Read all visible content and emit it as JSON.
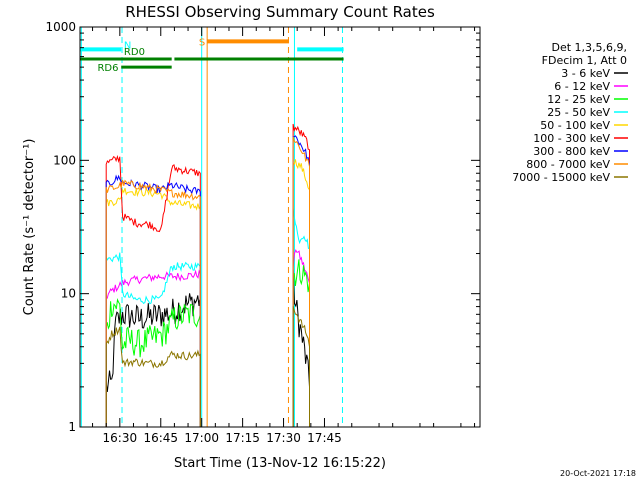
{
  "chart_data": {
    "type": "line",
    "title": "RHESSI Observing Summary Count Rates",
    "xlabel": "Start Time (13-Nov-12 16:15:22)",
    "ylabel": "Count Rate (s⁻¹ detector⁻¹)",
    "y_scale": "log",
    "ylim": [
      1,
      1000
    ],
    "xlim_minutes": [
      975.4,
      1122.0
    ],
    "y_ticks": [
      {
        "v": 1,
        "label": "1"
      },
      {
        "v": 10,
        "label": "10"
      },
      {
        "v": 100,
        "label": "100"
      },
      {
        "v": 1000,
        "label": "1000"
      }
    ],
    "x_ticks": [
      {
        "m": 990,
        "label": "16:30"
      },
      {
        "m": 1005,
        "label": "16:45"
      },
      {
        "m": 1020,
        "label": "17:00"
      },
      {
        "m": 1035,
        "label": "17:15"
      },
      {
        "m": 1050,
        "label": "17:30"
      },
      {
        "m": 1065,
        "label": "17:45"
      }
    ],
    "legend": {
      "placement": "right",
      "header": [
        "Det 1,3,5,6,9,",
        "FDecim 1, Att 0"
      ]
    },
    "series": [
      {
        "name": "3 - 6 keV",
        "color": "#000000",
        "segments": [
          [
            [
              985.0,
              2.0
            ],
            [
              987.0,
              2.1
            ],
            [
              988.5,
              6.0
            ],
            [
              991.0,
              7.0
            ],
            [
              997.0,
              6.5
            ],
            [
              1003.0,
              6.8
            ],
            [
              1009.0,
              7.2
            ],
            [
              1012.0,
              8.0
            ],
            [
              1016.0,
              8.5
            ],
            [
              1019.0,
              9.0
            ],
            [
              1019.5,
              9.0
            ]
          ],
          [
            [
              1053.5,
              12.0
            ],
            [
              1054.5,
              8.0
            ],
            [
              1056.5,
              5.0
            ],
            [
              1058.5,
              3.0
            ],
            [
              1059.5,
              2.0
            ]
          ]
        ]
      },
      {
        "name": "6 - 12 keV",
        "color": "#ff00ff",
        "segments": [
          [
            [
              985.0,
              9.5
            ],
            [
              987.0,
              10.5
            ],
            [
              991.0,
              12.0
            ],
            [
              994.0,
              12.5
            ],
            [
              999.0,
              13.0
            ],
            [
              1005.0,
              13.5
            ],
            [
              1009.0,
              13.5
            ],
            [
              1013.0,
              13.5
            ],
            [
              1019.5,
              14.0
            ]
          ],
          [
            [
              1053.5,
              16.0
            ],
            [
              1054.5,
              22.0
            ],
            [
              1056.5,
              18.0
            ],
            [
              1058.5,
              14.0
            ],
            [
              1059.5,
              12.0
            ]
          ]
        ]
      },
      {
        "name": "12 - 25 keV",
        "color": "#00ff00",
        "segments": [
          [
            [
              985.0,
              5.0
            ],
            [
              987.0,
              8.5
            ],
            [
              990.0,
              8.0
            ],
            [
              991.0,
              4.0
            ],
            [
              993.0,
              4.5
            ],
            [
              997.0,
              4.2
            ],
            [
              1001.0,
              4.5
            ],
            [
              1006.0,
              5.0
            ],
            [
              1010.0,
              6.5
            ],
            [
              1015.0,
              7.0
            ],
            [
              1019.5,
              7.0
            ]
          ],
          [
            [
              1053.5,
              14.0
            ],
            [
              1056.5,
              15.0
            ],
            [
              1058.5,
              13.0
            ],
            [
              1059.5,
              12.0
            ]
          ]
        ]
      },
      {
        "name": "25 - 50 keV",
        "color": "#00ffff",
        "segments": [
          [
            [
              985.0,
              18.0
            ],
            [
              990.0,
              19.0
            ],
            [
              991.0,
              10.0
            ],
            [
              996.0,
              9.0
            ],
            [
              1001.0,
              9.0
            ],
            [
              1005.0,
              9.0
            ],
            [
              1009.0,
              16.0
            ],
            [
              1015.0,
              16.0
            ],
            [
              1019.5,
              16.0
            ]
          ],
          [
            [
              1053.5,
              45.0
            ],
            [
              1055.5,
              25.0
            ],
            [
              1057.5,
              28.0
            ],
            [
              1059.5,
              22.0
            ]
          ]
        ]
      },
      {
        "name": "50 - 100 keV",
        "color": "#ffd700",
        "segments": [
          [
            [
              985.0,
              48.0
            ],
            [
              990.0,
              50.0
            ],
            [
              991.0,
              60.0
            ],
            [
              996.0,
              58.0
            ],
            [
              1001.0,
              57.0
            ],
            [
              1005.0,
              56.0
            ],
            [
              1009.0,
              48.0
            ],
            [
              1015.0,
              46.0
            ],
            [
              1019.5,
              45.0
            ]
          ],
          [
            [
              1053.5,
              100.0
            ],
            [
              1056.5,
              90.0
            ],
            [
              1058.5,
              70.0
            ],
            [
              1059.5,
              60.0
            ]
          ]
        ]
      },
      {
        "name": "100 - 300 keV",
        "color": "#ff0000",
        "segments": [
          [
            [
              985.0,
              95.0
            ],
            [
              990.0,
              105.0
            ],
            [
              991.0,
              38.0
            ],
            [
              996.0,
              34.0
            ],
            [
              1001.0,
              33.0
            ],
            [
              1004.0,
              31.0
            ],
            [
              1005.0,
              29.0
            ],
            [
              1009.0,
              88.0
            ],
            [
              1015.0,
              83.0
            ],
            [
              1019.5,
              80.0
            ]
          ],
          [
            [
              1053.5,
              180.0
            ],
            [
              1056.5,
              160.0
            ],
            [
              1058.5,
              140.0
            ],
            [
              1059.5,
              120.0
            ]
          ]
        ]
      },
      {
        "name": "300 - 800 keV",
        "color": "#0000ff",
        "segments": [
          [
            [
              985.0,
              65.0
            ],
            [
              990.0,
              75.0
            ],
            [
              991.0,
              68.0
            ],
            [
              996.0,
              66.0
            ],
            [
              1001.0,
              63.0
            ],
            [
              1005.0,
              60.0
            ],
            [
              1009.0,
              65.0
            ],
            [
              1015.0,
              60.0
            ],
            [
              1019.5,
              58.0
            ]
          ],
          [
            [
              1053.5,
              160.0
            ],
            [
              1056.5,
              130.0
            ],
            [
              1058.5,
              110.0
            ],
            [
              1059.5,
              95.0
            ]
          ]
        ]
      },
      {
        "name": "800 - 7000 keV",
        "color": "#ff8c00",
        "segments": [
          [
            [
              985.0,
              60.0
            ],
            [
              990.0,
              64.0
            ],
            [
              991.0,
              67.0
            ],
            [
              996.0,
              65.0
            ],
            [
              1001.0,
              62.0
            ],
            [
              1005.0,
              60.0
            ],
            [
              1009.0,
              57.0
            ],
            [
              1015.0,
              55.0
            ],
            [
              1019.5,
              53.0
            ]
          ],
          [
            [
              1053.5,
              150.0
            ],
            [
              1056.5,
              120.0
            ],
            [
              1058.5,
              100.0
            ],
            [
              1059.5,
              90.0
            ]
          ]
        ]
      },
      {
        "name": "7000 - 15000 keV",
        "color": "#8b7500",
        "segments": [
          [
            [
              985.0,
              4.2
            ],
            [
              987.0,
              5.0
            ],
            [
              990.0,
              5.5
            ],
            [
              991.0,
              3.0
            ],
            [
              995.0,
              3.1
            ],
            [
              1000.0,
              3.0
            ],
            [
              1005.0,
              3.0
            ],
            [
              1009.0,
              3.5
            ],
            [
              1015.0,
              3.4
            ],
            [
              1019.5,
              3.5
            ]
          ],
          [
            [
              1053.5,
              8.0
            ],
            [
              1056.5,
              6.0
            ],
            [
              1058.5,
              5.0
            ],
            [
              1059.5,
              4.0
            ]
          ]
        ]
      }
    ],
    "state_bars": [
      {
        "label": "N",
        "color": "#00ffff",
        "level": 680,
        "ranges": [
          [
            975.4,
            990.5
          ],
          [
            1055.0,
            1072.0
          ]
        ]
      },
      {
        "label": "S",
        "color": "#ff8c00",
        "level": 780,
        "ranges": [
          [
            1022.0,
            1052.0
          ]
        ]
      },
      {
        "label": "RD0",
        "color": "#008000",
        "level": 575,
        "ranges": [
          [
            975.4,
            1009.0
          ],
          [
            1010.0,
            1072.0
          ]
        ]
      },
      {
        "label": "RD6",
        "color": "#008000",
        "level": 500,
        "ranges": [
          [
            990.5,
            1009.0
          ]
        ]
      }
    ],
    "vlines": [
      {
        "m": 975.9,
        "color": "#00ffff",
        "dash": false
      },
      {
        "m": 990.8,
        "color": "#00ffff",
        "dash": true
      },
      {
        "m": 1020.0,
        "color": "#00ffff",
        "dash": false
      },
      {
        "m": 1022.0,
        "color": "#ff8c00",
        "dash": false
      },
      {
        "m": 1051.8,
        "color": "#ff8c00",
        "dash": true
      },
      {
        "m": 1054.0,
        "color": "#00ffff",
        "dash": false
      },
      {
        "m": 1071.6,
        "color": "#00ffff",
        "dash": true
      }
    ]
  },
  "footer": {
    "timestamp": "20-Oct-2021 17:18"
  }
}
